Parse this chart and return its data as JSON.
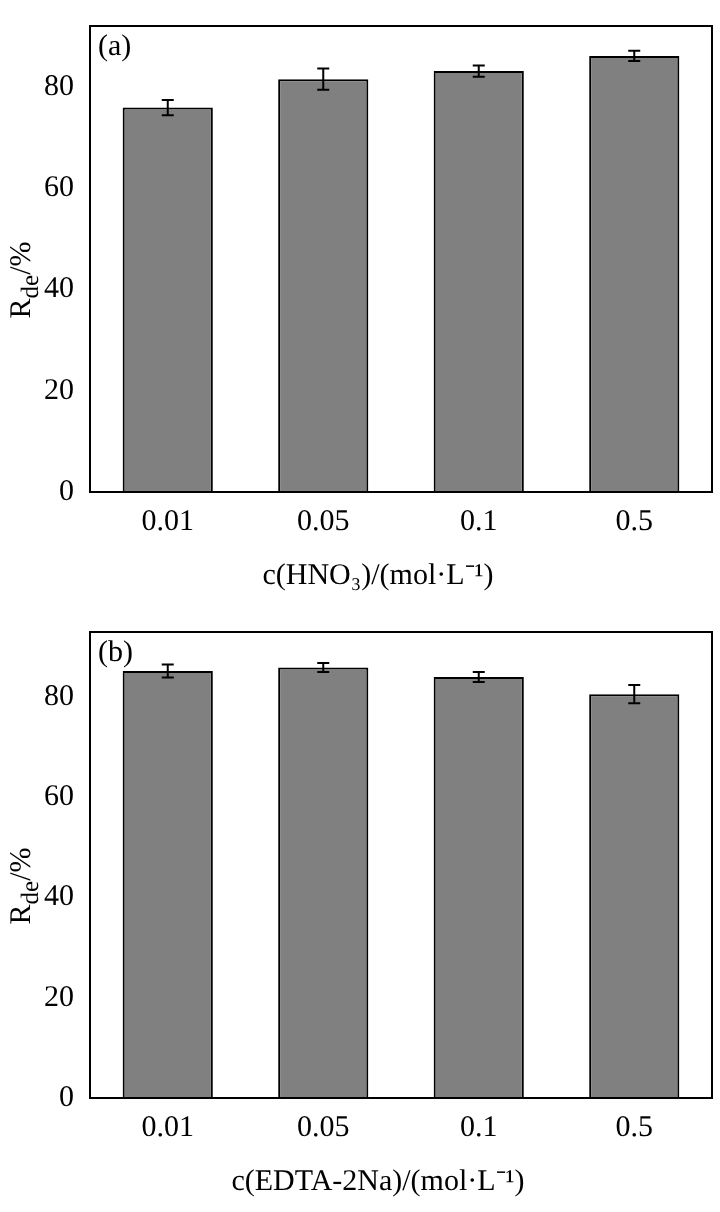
{
  "chart_data": [
    {
      "type": "bar",
      "annotations": [
        "(a)"
      ],
      "xlabel": "c(HNO₃)/(mol·L⁻¹)",
      "ylabel": "R$_{de}$/%",
      "categories": [
        "0.01",
        "0.05",
        "0.1",
        "0.5"
      ],
      "values": [
        75.9,
        81.5,
        83.1,
        86.1
      ],
      "errors": [
        1.5,
        2.1,
        1.1,
        1.0
      ],
      "color": "#808080",
      "ylim": [
        0,
        92
      ],
      "yticks": [
        0,
        20,
        40,
        60,
        80
      ],
      "grid": false,
      "legend": false
    },
    {
      "type": "bar",
      "annotations": [
        "(b)"
      ],
      "xlabel": "c(EDTA-2Na)/(mol·L⁻¹)",
      "ylabel": "R$_{de}$/%",
      "categories": [
        "0.01",
        "0.05",
        "0.1",
        "0.5"
      ],
      "values": [
        85.2,
        85.9,
        84.0,
        80.6
      ],
      "errors": [
        1.3,
        0.9,
        1.0,
        1.8
      ],
      "color": "#808080",
      "ylim": [
        0,
        93
      ],
      "yticks": [
        0,
        20,
        40,
        60,
        80
      ],
      "grid": false,
      "legend": false
    }
  ]
}
